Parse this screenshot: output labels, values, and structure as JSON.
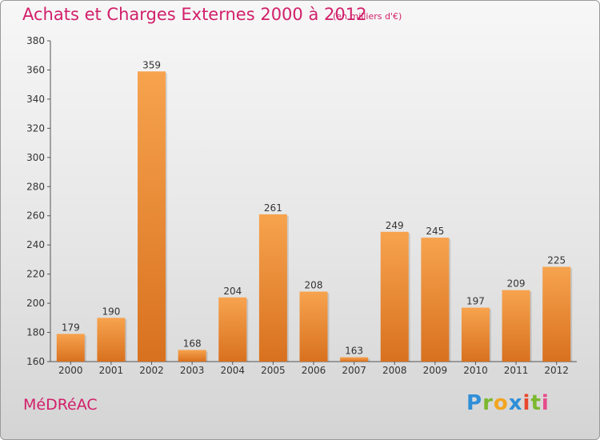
{
  "title": "Achats et Charges Externes 2000 à 2012",
  "subtitle": "(en milliers d'€)",
  "commune": "MéDRéAC",
  "brand": {
    "letters": [
      "P",
      "r",
      "o",
      "x",
      "i",
      "t",
      "i"
    ],
    "colors": [
      "#2f8fd8",
      "#7cb82f",
      "#f2a51f",
      "#2f8fd8",
      "#e8482e",
      "#7cb82f",
      "#e84c8b"
    ]
  },
  "colors": {
    "bar_light": "#f7a34e",
    "bar_dark": "#d8711f",
    "accent": "#d21f6a"
  },
  "chart_data": {
    "type": "bar",
    "title": "Achats et Charges Externes 2000 à 2012",
    "subtitle": "(en milliers d'€)",
    "categories": [
      "2000",
      "2001",
      "2002",
      "2003",
      "2004",
      "2005",
      "2006",
      "2007",
      "2008",
      "2009",
      "2010",
      "2011",
      "2012"
    ],
    "values": [
      179,
      190,
      359,
      168,
      204,
      261,
      208,
      163,
      249,
      245,
      197,
      209,
      225
    ],
    "ylim": [
      160,
      380
    ],
    "yticks": [
      160,
      180,
      200,
      220,
      240,
      260,
      280,
      300,
      320,
      340,
      360,
      380
    ],
    "grid": false,
    "xlabel": "",
    "ylabel": ""
  }
}
